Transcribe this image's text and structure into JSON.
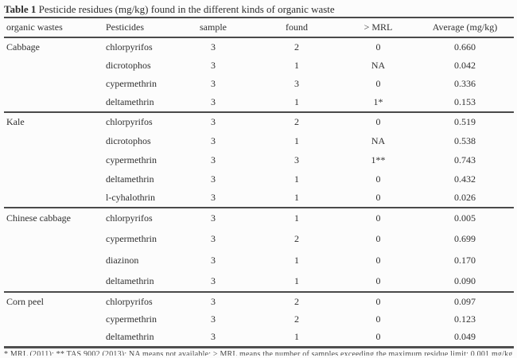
{
  "title": {
    "label": "Table 1",
    "text": "Pesticide residues (mg/kg) found in the different kinds of organic waste"
  },
  "table": {
    "columns": [
      "organic wastes",
      "Pesticides",
      "sample",
      "found",
      "> MRL",
      "Average (mg/kg)"
    ],
    "groups": [
      {
        "waste": "Cabbage",
        "rows": [
          {
            "pesticide": "chlorpyrifos",
            "sample": "3",
            "found": "2",
            "mrl": "0",
            "average": "0.660"
          },
          {
            "pesticide": "dicrotophos",
            "sample": "3",
            "found": "1",
            "mrl": "NA",
            "average": "0.042"
          },
          {
            "pesticide": "cypermethrin",
            "sample": "3",
            "found": "3",
            "mrl": "0",
            "average": "0.336"
          },
          {
            "pesticide": "deltamethrin",
            "sample": "3",
            "found": "1",
            "mrl": "1*",
            "average": "0.153"
          }
        ]
      },
      {
        "waste": "Kale",
        "rows": [
          {
            "pesticide": "chlorpyrifos",
            "sample": "3",
            "found": "2",
            "mrl": "0",
            "average": "0.519"
          },
          {
            "pesticide": "dicrotophos",
            "sample": "3",
            "found": "1",
            "mrl": "NA",
            "average": "0.538"
          },
          {
            "pesticide": "cypermethrin",
            "sample": "3",
            "found": "3",
            "mrl": "1**",
            "average": "0.743"
          },
          {
            "pesticide": "deltamethrin",
            "sample": "3",
            "found": "1",
            "mrl": "0",
            "average": "0.432"
          },
          {
            "pesticide": "l-cyhalothrin",
            "sample": "3",
            "found": "1",
            "mrl": "0",
            "average": "0.026"
          }
        ]
      },
      {
        "waste": "Chinese cabbage",
        "rows": [
          {
            "pesticide": "chlorpyrifos",
            "sample": "3",
            "found": "1",
            "mrl": "0",
            "average": "0.005"
          },
          {
            "pesticide": "cypermethrin",
            "sample": "3",
            "found": "2",
            "mrl": "0",
            "average": "0.699"
          },
          {
            "pesticide": "diazinon",
            "sample": "3",
            "found": "1",
            "mrl": "0",
            "average": "0.170"
          },
          {
            "pesticide": "deltamethrin",
            "sample": "3",
            "found": "1",
            "mrl": "0",
            "average": "0.090"
          }
        ]
      },
      {
        "waste": "Corn peel",
        "rows": [
          {
            "pesticide": "chlorpyrifos",
            "sample": "3",
            "found": "2",
            "mrl": "0",
            "average": "0.097"
          },
          {
            "pesticide": "cypermethrin",
            "sample": "3",
            "found": "2",
            "mrl": "0",
            "average": "0.123"
          },
          {
            "pesticide": "deltamethrin",
            "sample": "3",
            "found": "1",
            "mrl": "0",
            "average": "0.049"
          }
        ]
      }
    ],
    "footnote": "* MRL (2011); ** TAS 9002 (2013); NA means not available; > MRL means the number of samples exceeding the maximum residue limit; 0.001 mg/kg"
  },
  "colors": {
    "rule": "#4a4a4a",
    "text": "#2f2f2f",
    "background": "#fcfcfc"
  }
}
